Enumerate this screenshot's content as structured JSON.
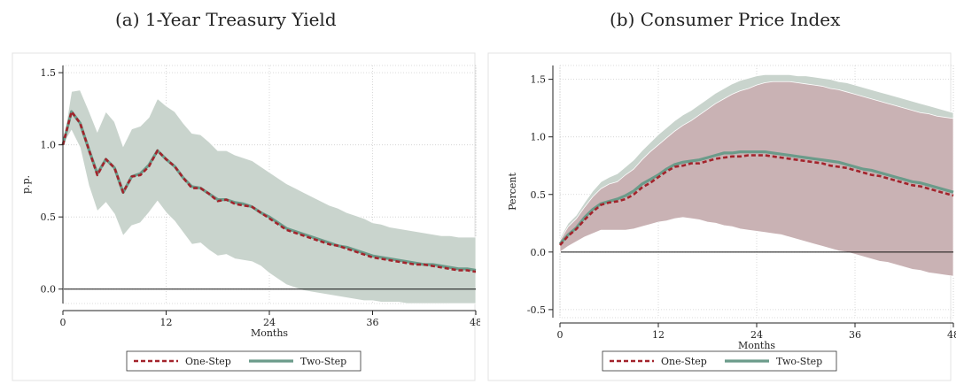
{
  "chart_data": [
    {
      "type": "line",
      "title": "(a) 1-Year Treasury Yield",
      "xlabel": "Months",
      "ylabel": "p.p.",
      "xlim": [
        0,
        48
      ],
      "ylim": [
        -0.1,
        1.55
      ],
      "xticks": [
        0,
        12,
        24,
        36,
        48
      ],
      "yticks": [
        0.0,
        0.5,
        1.0,
        1.5
      ],
      "ytick_labels": [
        "0.0",
        "0.5",
        "1.0",
        "1.5"
      ],
      "grid": true,
      "legend_position": "bottom",
      "zero_line": true,
      "x": [
        0,
        1,
        2,
        3,
        4,
        5,
        6,
        7,
        8,
        9,
        10,
        11,
        12,
        13,
        14,
        15,
        16,
        17,
        18,
        19,
        20,
        21,
        22,
        23,
        24,
        25,
        26,
        27,
        28,
        29,
        30,
        31,
        32,
        33,
        34,
        35,
        36,
        37,
        38,
        39,
        40,
        41,
        42,
        43,
        44,
        45,
        46,
        47,
        48
      ],
      "series": [
        {
          "name": "One-Step",
          "color": "#a3232b",
          "style": "dashed",
          "values": [
            1.0,
            1.23,
            1.15,
            0.97,
            0.79,
            0.9,
            0.84,
            0.67,
            0.78,
            0.79,
            0.85,
            0.96,
            0.9,
            0.85,
            0.77,
            0.7,
            0.7,
            0.66,
            0.61,
            0.62,
            0.59,
            0.58,
            0.57,
            0.53,
            0.49,
            0.45,
            0.41,
            0.39,
            0.37,
            0.35,
            0.33,
            0.31,
            0.3,
            0.28,
            0.26,
            0.24,
            0.22,
            0.21,
            0.2,
            0.19,
            0.18,
            0.17,
            0.17,
            0.16,
            0.15,
            0.14,
            0.13,
            0.13,
            0.12
          ]
        },
        {
          "name": "Two-Step",
          "color": "#6b9b8a",
          "style": "solid",
          "values": [
            1.0,
            1.23,
            1.15,
            0.97,
            0.8,
            0.9,
            0.84,
            0.67,
            0.78,
            0.8,
            0.86,
            0.96,
            0.9,
            0.85,
            0.77,
            0.71,
            0.7,
            0.66,
            0.62,
            0.62,
            0.6,
            0.59,
            0.57,
            0.53,
            0.5,
            0.46,
            0.42,
            0.4,
            0.38,
            0.36,
            0.34,
            0.32,
            0.3,
            0.29,
            0.27,
            0.25,
            0.23,
            0.22,
            0.21,
            0.2,
            0.19,
            0.18,
            0.17,
            0.17,
            0.16,
            0.15,
            0.14,
            0.14,
            0.13
          ]
        }
      ],
      "bands": [
        {
          "name": "One-Step CI",
          "color": "#c9b2b4",
          "lower": [
            1.0,
            1.1,
            0.98,
            0.72,
            0.54,
            0.6,
            0.52,
            0.38,
            0.45,
            0.47,
            0.54,
            0.62,
            0.54,
            0.48,
            0.4,
            0.32,
            0.33,
            0.28,
            0.24,
            0.25,
            0.22,
            0.21,
            0.2,
            0.17,
            0.12,
            0.08,
            0.04,
            0.02,
            0.0,
            -0.01,
            -0.02,
            -0.03,
            -0.04,
            -0.05,
            -0.06,
            -0.07,
            -0.07,
            -0.08,
            -0.08,
            -0.08,
            -0.09,
            -0.09,
            -0.09,
            -0.09,
            -0.09,
            -0.1,
            -0.1,
            -0.1,
            -0.1
          ],
          "upper": [
            1.0,
            1.36,
            1.37,
            1.23,
            1.08,
            1.22,
            1.15,
            0.98,
            1.1,
            1.12,
            1.18,
            1.31,
            1.26,
            1.22,
            1.14,
            1.07,
            1.06,
            1.01,
            0.95,
            0.95,
            0.92,
            0.9,
            0.88,
            0.84,
            0.8,
            0.76,
            0.72,
            0.69,
            0.66,
            0.63,
            0.6,
            0.57,
            0.55,
            0.52,
            0.5,
            0.48,
            0.45,
            0.44,
            0.42,
            0.41,
            0.4,
            0.39,
            0.38,
            0.37,
            0.36,
            0.36,
            0.35,
            0.35,
            0.35
          ]
        },
        {
          "name": "Two-Step CI",
          "color": "#c9d4cd",
          "lower": [
            1.0,
            1.1,
            0.98,
            0.72,
            0.54,
            0.6,
            0.52,
            0.37,
            0.44,
            0.46,
            0.53,
            0.61,
            0.53,
            0.47,
            0.39,
            0.31,
            0.32,
            0.27,
            0.23,
            0.24,
            0.21,
            0.2,
            0.19,
            0.16,
            0.11,
            0.07,
            0.03,
            0.01,
            -0.01,
            -0.02,
            -0.03,
            -0.04,
            -0.05,
            -0.06,
            -0.07,
            -0.08,
            -0.08,
            -0.09,
            -0.09,
            -0.09,
            -0.1,
            -0.1,
            -0.1,
            -0.1,
            -0.1,
            -0.1,
            -0.1,
            -0.1,
            -0.1
          ],
          "upper": [
            1.0,
            1.37,
            1.38,
            1.24,
            1.09,
            1.23,
            1.16,
            0.99,
            1.11,
            1.13,
            1.19,
            1.32,
            1.27,
            1.23,
            1.15,
            1.08,
            1.07,
            1.02,
            0.96,
            0.96,
            0.93,
            0.91,
            0.89,
            0.85,
            0.81,
            0.77,
            0.73,
            0.7,
            0.67,
            0.64,
            0.61,
            0.58,
            0.56,
            0.53,
            0.51,
            0.49,
            0.46,
            0.45,
            0.43,
            0.42,
            0.41,
            0.4,
            0.39,
            0.38,
            0.37,
            0.37,
            0.36,
            0.36,
            0.36
          ]
        }
      ]
    },
    {
      "type": "line",
      "title": "(b) Consumer Price Index",
      "xlabel": "Months",
      "ylabel": "Percent",
      "xlim": [
        0,
        48
      ],
      "ylim": [
        -0.57,
        1.62
      ],
      "xticks": [
        0,
        12,
        24,
        36,
        48
      ],
      "yticks": [
        -0.5,
        0.0,
        0.5,
        1.0,
        1.5
      ],
      "ytick_labels": [
        "-0.5",
        "0.0",
        "0.5",
        "1.0",
        "1.5"
      ],
      "grid": true,
      "legend_position": "bottom",
      "zero_line": true,
      "x": [
        0,
        1,
        2,
        3,
        4,
        5,
        6,
        7,
        8,
        9,
        10,
        11,
        12,
        13,
        14,
        15,
        16,
        17,
        18,
        19,
        20,
        21,
        22,
        23,
        24,
        25,
        26,
        27,
        28,
        29,
        30,
        31,
        32,
        33,
        34,
        35,
        36,
        37,
        38,
        39,
        40,
        41,
        42,
        43,
        44,
        45,
        46,
        47,
        48
      ],
      "series": [
        {
          "name": "One-Step",
          "color": "#a3232b",
          "style": "dashed",
          "values": [
            0.06,
            0.14,
            0.2,
            0.28,
            0.35,
            0.41,
            0.43,
            0.44,
            0.46,
            0.5,
            0.56,
            0.6,
            0.65,
            0.7,
            0.74,
            0.75,
            0.77,
            0.77,
            0.79,
            0.81,
            0.82,
            0.83,
            0.83,
            0.84,
            0.84,
            0.84,
            0.83,
            0.82,
            0.81,
            0.8,
            0.79,
            0.78,
            0.77,
            0.75,
            0.74,
            0.73,
            0.71,
            0.69,
            0.67,
            0.66,
            0.64,
            0.62,
            0.6,
            0.58,
            0.57,
            0.55,
            0.53,
            0.51,
            0.49
          ]
        },
        {
          "name": "Two-Step",
          "color": "#6b9b8a",
          "style": "solid",
          "values": [
            0.07,
            0.15,
            0.21,
            0.3,
            0.37,
            0.42,
            0.44,
            0.46,
            0.49,
            0.53,
            0.59,
            0.63,
            0.67,
            0.72,
            0.76,
            0.78,
            0.79,
            0.8,
            0.82,
            0.84,
            0.86,
            0.86,
            0.87,
            0.87,
            0.87,
            0.87,
            0.86,
            0.85,
            0.84,
            0.83,
            0.82,
            0.81,
            0.8,
            0.79,
            0.78,
            0.76,
            0.74,
            0.72,
            0.71,
            0.69,
            0.67,
            0.65,
            0.63,
            0.61,
            0.6,
            0.58,
            0.56,
            0.54,
            0.52
          ]
        }
      ],
      "bands": [
        {
          "name": "Two-Step CI",
          "color": "#c9d4cd",
          "lower": [
            0.0,
            0.06,
            0.1,
            0.14,
            0.17,
            0.2,
            0.2,
            0.2,
            0.2,
            0.21,
            0.23,
            0.25,
            0.27,
            0.28,
            0.3,
            0.31,
            0.3,
            0.29,
            0.27,
            0.26,
            0.24,
            0.23,
            0.21,
            0.2,
            0.19,
            0.18,
            0.17,
            0.16,
            0.14,
            0.12,
            0.1,
            0.08,
            0.06,
            0.04,
            0.02,
            0.01,
            -0.01,
            -0.03,
            -0.05,
            -0.07,
            -0.08,
            -0.1,
            -0.12,
            -0.14,
            -0.15,
            -0.17,
            -0.18,
            -0.19,
            -0.2
          ],
          "upper": [
            0.12,
            0.25,
            0.32,
            0.43,
            0.53,
            0.61,
            0.65,
            0.68,
            0.74,
            0.8,
            0.88,
            0.95,
            1.02,
            1.08,
            1.14,
            1.19,
            1.23,
            1.28,
            1.33,
            1.38,
            1.42,
            1.46,
            1.49,
            1.51,
            1.53,
            1.54,
            1.54,
            1.54,
            1.54,
            1.53,
            1.53,
            1.52,
            1.51,
            1.5,
            1.48,
            1.47,
            1.45,
            1.43,
            1.41,
            1.39,
            1.37,
            1.35,
            1.33,
            1.31,
            1.29,
            1.27,
            1.25,
            1.23,
            1.21
          ]
        },
        {
          "name": "One-Step CI",
          "color": "#c9b2b4",
          "lower": [
            0.0,
            0.05,
            0.09,
            0.13,
            0.16,
            0.19,
            0.19,
            0.19,
            0.19,
            0.2,
            0.22,
            0.24,
            0.26,
            0.27,
            0.29,
            0.3,
            0.29,
            0.28,
            0.26,
            0.25,
            0.23,
            0.22,
            0.2,
            0.19,
            0.18,
            0.17,
            0.16,
            0.15,
            0.13,
            0.11,
            0.09,
            0.07,
            0.05,
            0.03,
            0.01,
            0.0,
            -0.02,
            -0.04,
            -0.06,
            -0.08,
            -0.09,
            -0.11,
            -0.13,
            -0.15,
            -0.16,
            -0.18,
            -0.19,
            -0.2,
            -0.21
          ],
          "upper": [
            0.1,
            0.22,
            0.29,
            0.39,
            0.48,
            0.55,
            0.59,
            0.61,
            0.67,
            0.72,
            0.8,
            0.87,
            0.93,
            0.99,
            1.05,
            1.1,
            1.14,
            1.19,
            1.24,
            1.29,
            1.33,
            1.37,
            1.4,
            1.42,
            1.45,
            1.47,
            1.48,
            1.48,
            1.48,
            1.47,
            1.46,
            1.45,
            1.44,
            1.42,
            1.41,
            1.39,
            1.37,
            1.35,
            1.33,
            1.31,
            1.29,
            1.27,
            1.25,
            1.23,
            1.21,
            1.2,
            1.18,
            1.17,
            1.16
          ]
        }
      ]
    }
  ],
  "legend": {
    "one_step": "One-Step",
    "two_step": "Two-Step"
  }
}
